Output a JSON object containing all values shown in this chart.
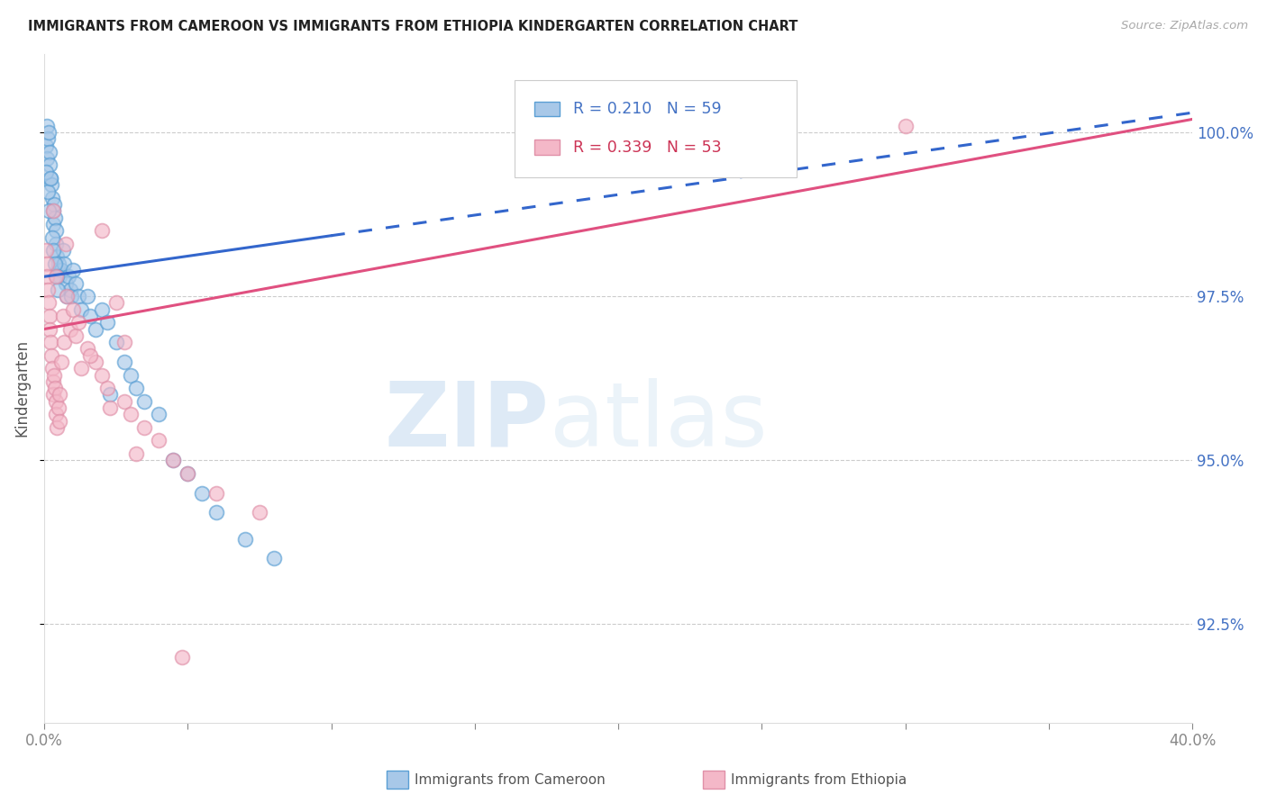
{
  "title": "IMMIGRANTS FROM CAMEROON VS IMMIGRANTS FROM ETHIOPIA KINDERGARTEN CORRELATION CHART",
  "source": "Source: ZipAtlas.com",
  "ylabel": "Kindergarten",
  "ytick_values": [
    92.5,
    95.0,
    97.5,
    100.0
  ],
  "ytick_labels": [
    "92.5%",
    "95.0%",
    "97.5%",
    "100.0%"
  ],
  "xmin": 0.0,
  "xmax": 40.0,
  "ymin": 91.0,
  "ymax": 101.2,
  "legend_r1": "R = 0.210",
  "legend_n1": "N = 59",
  "legend_r2": "R = 0.339",
  "legend_n2": "N = 53",
  "color_cameroon_fill": "#a8c8e8",
  "color_cameroon_edge": "#5a9fd4",
  "color_ethiopia_fill": "#f4b8c8",
  "color_ethiopia_edge": "#e090a8",
  "color_line_cameroon": "#3366cc",
  "color_line_ethiopia": "#e05080",
  "color_yticks": "#4472C4",
  "watermark_zip": "ZIP",
  "watermark_atlas": "atlas",
  "cam_line_x0": 0.0,
  "cam_line_x1": 40.0,
  "cam_line_y0": 97.8,
  "cam_line_y1": 100.3,
  "eth_line_x0": 0.0,
  "eth_line_x1": 40.0,
  "eth_line_y0": 97.0,
  "eth_line_y1": 100.2,
  "cam_points_x": [
    0.05,
    0.08,
    0.1,
    0.12,
    0.15,
    0.18,
    0.2,
    0.22,
    0.25,
    0.28,
    0.3,
    0.32,
    0.35,
    0.38,
    0.4,
    0.42,
    0.45,
    0.48,
    0.5,
    0.55,
    0.6,
    0.65,
    0.7,
    0.75,
    0.8,
    0.85,
    0.9,
    0.95,
    1.0,
    1.1,
    1.2,
    1.3,
    1.5,
    1.6,
    1.8,
    2.0,
    2.2,
    2.5,
    2.8,
    3.0,
    3.2,
    3.5,
    4.0,
    4.5,
    5.0,
    5.5,
    6.0,
    7.0,
    8.0,
    0.07,
    0.13,
    0.17,
    0.23,
    0.27,
    0.33,
    0.37,
    0.43,
    0.47,
    2.3
  ],
  "cam_points_y": [
    99.8,
    99.6,
    100.1,
    99.9,
    100.0,
    99.7,
    99.5,
    99.3,
    99.2,
    99.0,
    98.8,
    98.6,
    98.9,
    98.7,
    98.5,
    98.3,
    98.1,
    97.9,
    98.0,
    97.8,
    97.9,
    98.2,
    98.0,
    97.7,
    97.5,
    97.8,
    97.6,
    97.5,
    97.9,
    97.7,
    97.5,
    97.3,
    97.5,
    97.2,
    97.0,
    97.3,
    97.1,
    96.8,
    96.5,
    96.3,
    96.1,
    95.9,
    95.7,
    95.0,
    94.8,
    94.5,
    94.2,
    93.8,
    93.5,
    99.4,
    99.1,
    98.8,
    99.3,
    98.4,
    98.2,
    98.0,
    97.8,
    97.6,
    96.0
  ],
  "eth_points_x": [
    0.05,
    0.08,
    0.1,
    0.12,
    0.15,
    0.18,
    0.2,
    0.22,
    0.25,
    0.28,
    0.3,
    0.32,
    0.35,
    0.38,
    0.4,
    0.42,
    0.45,
    0.5,
    0.55,
    0.6,
    0.65,
    0.7,
    0.8,
    0.9,
    1.0,
    1.1,
    1.2,
    1.5,
    1.8,
    2.0,
    2.2,
    2.5,
    2.8,
    3.0,
    3.5,
    4.0,
    4.5,
    5.0,
    6.0,
    7.5,
    25.0,
    30.0,
    2.0,
    2.8,
    0.3,
    0.4,
    0.55,
    0.75,
    1.3,
    3.2,
    1.6,
    2.3,
    4.8
  ],
  "eth_points_y": [
    98.2,
    98.0,
    97.8,
    97.6,
    97.4,
    97.2,
    97.0,
    96.8,
    96.6,
    96.4,
    96.2,
    96.0,
    96.3,
    96.1,
    95.9,
    95.7,
    95.5,
    95.8,
    95.6,
    96.5,
    97.2,
    96.8,
    97.5,
    97.0,
    97.3,
    96.9,
    97.1,
    96.7,
    96.5,
    96.3,
    96.1,
    97.4,
    95.9,
    95.7,
    95.5,
    95.3,
    95.0,
    94.8,
    94.5,
    94.2,
    100.0,
    100.1,
    98.5,
    96.8,
    98.8,
    97.8,
    96.0,
    98.3,
    96.4,
    95.1,
    96.6,
    95.8,
    92.0
  ]
}
